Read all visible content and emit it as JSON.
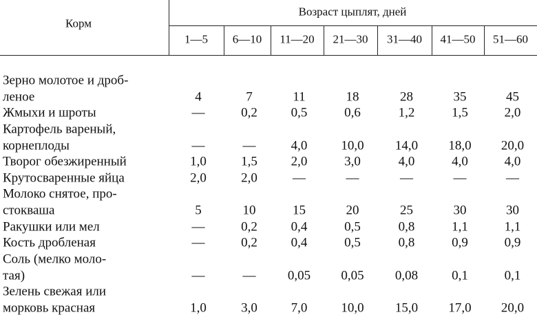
{
  "header": {
    "feed": "Корм",
    "age": "Возраст цыплят, дней",
    "ranges": [
      "1—5",
      "6—10",
      "11—20",
      "21—30",
      "31—40",
      "41—50",
      "51—60"
    ]
  },
  "rows": [
    {
      "label": [
        "Зерно молотое и дроб-",
        "леное"
      ],
      "values": [
        "4",
        "7",
        "11",
        "18",
        "28",
        "35",
        "45"
      ]
    },
    {
      "label": [
        "Жмыхи и шроты"
      ],
      "values": [
        "—",
        "0,2",
        "0,5",
        "0,6",
        "1,2",
        "1,5",
        "2,0"
      ]
    },
    {
      "label": [
        "Картофель вареный,",
        "корнеплоды"
      ],
      "values": [
        "—",
        "—",
        "4,0",
        "10,0",
        "14,0",
        "18,0",
        "20,0"
      ]
    },
    {
      "label": [
        "Творог обезжиренный"
      ],
      "values": [
        "1,0",
        "1,5",
        "2,0",
        "3,0",
        "4,0",
        "4,0",
        "4,0"
      ]
    },
    {
      "label": [
        "Крутосваренные яйца"
      ],
      "values": [
        "2,0",
        "2,0",
        "—",
        "—",
        "—",
        "—",
        "—"
      ]
    },
    {
      "label": [
        "Молоко снятое, про-",
        "стокваша"
      ],
      "values": [
        "5",
        "10",
        "15",
        "20",
        "25",
        "30",
        "30"
      ]
    },
    {
      "label": [
        "Ракушки или мел"
      ],
      "values": [
        "—",
        "0,2",
        "0,4",
        "0,5",
        "0,8",
        "1,1",
        "1,1"
      ]
    },
    {
      "label": [
        "Кость дробленая"
      ],
      "values": [
        "—",
        "0,2",
        "0,4",
        "0,5",
        "0,8",
        "0,9",
        "0,9"
      ]
    },
    {
      "label": [
        "Соль (мелко моло-",
        "тая)"
      ],
      "values": [
        "—",
        "—",
        "0,05",
        "0,05",
        "0,08",
        "0,1",
        "0,1"
      ]
    },
    {
      "label": [
        "Зелень свежая или",
        "морковь красная"
      ],
      "values": [
        "1,0",
        "3,0",
        "7,0",
        "10,0",
        "15,0",
        "17,0",
        "20,0"
      ]
    }
  ]
}
